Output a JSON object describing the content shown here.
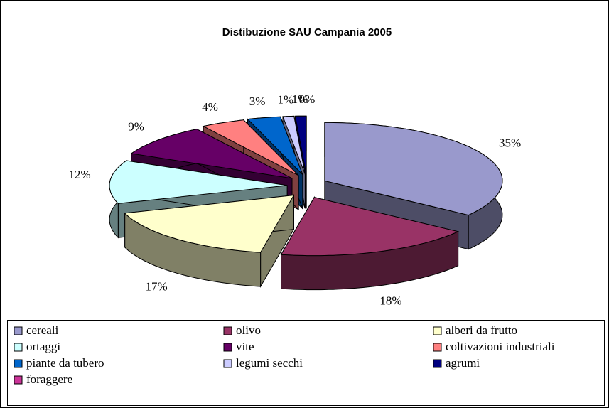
{
  "chart_data": {
    "type": "pie",
    "title": "Distibuzione SAU Campania 2005",
    "categories": [
      "cereali",
      "olivo",
      "alberi da frutto",
      "ortaggi",
      "vite",
      "coltivazioni industriali",
      "piante da tubero",
      "legumi secchi",
      "agrumi",
      "foraggere"
    ],
    "values": [
      35,
      18,
      17,
      12,
      9,
      4,
      3,
      1,
      1,
      0
    ],
    "value_labels": [
      "35%",
      "18%",
      "17%",
      "12%",
      "9%",
      "4%",
      "3%",
      "1%",
      "1%",
      "0%"
    ],
    "colors": [
      "#9999cc",
      "#993366",
      "#ffffcc",
      "#ccffff",
      "#660066",
      "#ff8080",
      "#0066cc",
      "#ccccff",
      "#000080",
      "#cc3399"
    ],
    "legend": "bottom"
  }
}
